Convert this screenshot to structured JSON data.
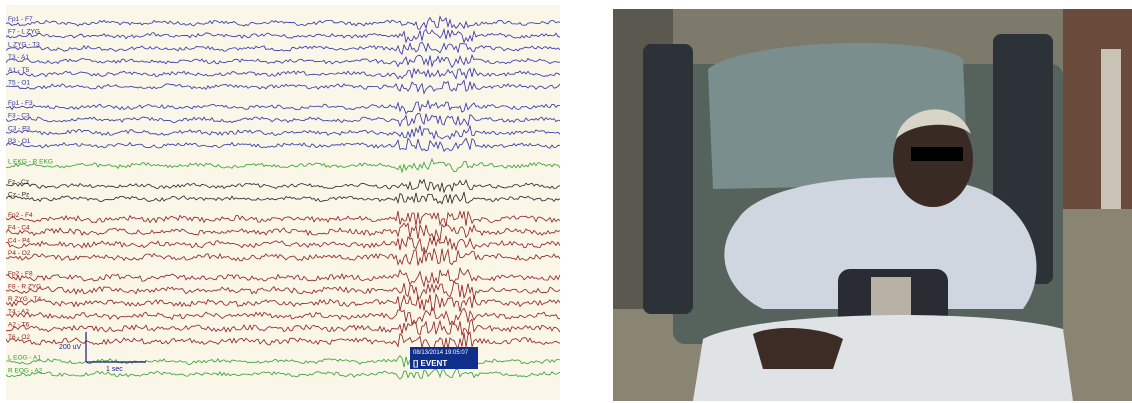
{
  "eeg": {
    "scale_label": "200 uV",
    "time_label": "1 sec",
    "event_timestamp": "08/13/2014 19:05:07",
    "event_label": "[] EVENT",
    "channel_groups": [
      {
        "color": "#2b2fa8",
        "channels": [
          "Fp1 - F7",
          "F7 - L ZYG",
          "L ZYG - T3",
          "T3 - A1",
          "A1 - T5",
          "T5 - O1"
        ]
      },
      {
        "color": "#2b2fa8",
        "channels": [
          "Fp1 - F3",
          "F3 - C3",
          "C3 - P3",
          "P3 - O1"
        ]
      },
      {
        "color": "#2e9e2e",
        "channels": [
          "L EKG - R EKG"
        ]
      },
      {
        "color": "#222222",
        "channels": [
          "Fz - Cz",
          "Cz - Pz"
        ]
      },
      {
        "color": "#8e1b1b",
        "channels": [
          "Fp2 - F4",
          "F4 - C4",
          "C4 - P4",
          "P4 - O2"
        ]
      },
      {
        "color": "#8e1b1b",
        "channels": [
          "Fp2 - F8",
          "F8 - R ZYG",
          "R ZYG - T4",
          "T4 - A2",
          "A2 - T6",
          "T6 - O2"
        ]
      },
      {
        "color": "#2e9e2e",
        "channels": [
          "L EOG - A1",
          "R EOG - A2"
        ]
      }
    ]
  },
  "photo": {
    "colors": {
      "wall": "#7d7a6c",
      "pillow": "#7a8e8e",
      "mattress": "#2d3238",
      "gown": "#cfd6e0",
      "bag": "#2a2c33"
    }
  }
}
